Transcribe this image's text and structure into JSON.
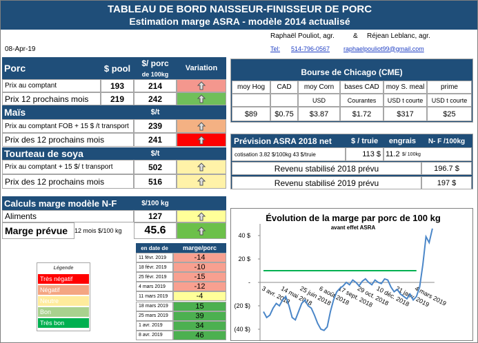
{
  "header": {
    "title": "TABLEAU DE BORD NAISSEUR-FINISSEUR DE PORC",
    "subtitle": "Estimation marge ASRA - modèle 2014 actualisé",
    "date": "08-Apr-19",
    "author1": "Raphaël Pouliot, agr.",
    "and": "&",
    "author2": "Réjean Leblanc, agr.",
    "tel_label": "Tel:",
    "tel": "514-796-0567",
    "email": "raphaelpouliot99@gmail.com"
  },
  "porc": {
    "title": "Porc",
    "col_pool": "$ pool",
    "col_porc": "$/ porc",
    "col_porc_unit": "de 100kg",
    "col_variation": "Variation",
    "rows": [
      {
        "label": "Prix au comptant",
        "pool": 193,
        "porc": 214,
        "color": "#f4978e"
      },
      {
        "label": "Prix 12 prochains mois",
        "pool": 219,
        "porc": 242,
        "color": "#70bf5a"
      }
    ]
  },
  "mais": {
    "title": "Maïs",
    "unit": "$/t",
    "rows": [
      {
        "label": "Prix au comptant  FOB + 15 $ /t transport",
        "value": 239,
        "color": "#f4b183"
      },
      {
        "label": "Prix des 12 prochains mois",
        "value": 241,
        "color": "#ff0000"
      }
    ]
  },
  "soya": {
    "title": "Tourteau de soya",
    "unit": "$/t",
    "rows": [
      {
        "label": "Prix au comptant  + 15 $/ t  transport",
        "value": 502,
        "color": "#fff2a8"
      },
      {
        "label": "Prix des 12 prochains mois",
        "value": 516,
        "color": "#fff2a8"
      }
    ]
  },
  "calculs": {
    "title": "Calculs marge  modèle N-F",
    "unit": "$/100 kg",
    "aliments_label": "Aliments",
    "aliments": 127,
    "aliments_color": "#ffff99",
    "marge_label": "Marge prévue",
    "marge_unit": "12 mois  $/100 kg",
    "marge": 45.6,
    "marge_color": "#6cc04a"
  },
  "margin_table": {
    "col_date": "en date de",
    "col_marge": "marge/porc",
    "rows": [
      {
        "date": "11 févr. 2019",
        "value": -14,
        "color": "#f8a090"
      },
      {
        "date": "18 févr. 2019",
        "value": -10,
        "color": "#f8a090"
      },
      {
        "date": "25 févr. 2019",
        "value": -15,
        "color": "#f8a090"
      },
      {
        "date": "4 mars 2019",
        "value": -12,
        "color": "#f8a090"
      },
      {
        "date": "11 mars 2019",
        "value": -4,
        "color": "#ffff99"
      },
      {
        "date": "18 mars 2019",
        "value": 15,
        "color": "#4cb050"
      },
      {
        "date": "25 mars 2019",
        "value": 39,
        "color": "#4cb050"
      },
      {
        "date": "1 avr. 2019",
        "value": 34,
        "color": "#4cb050"
      },
      {
        "date": "8 avr. 2019",
        "value": 46,
        "color": "#4cb050"
      }
    ]
  },
  "legend": {
    "title": "Légende",
    "items": [
      {
        "label": "Très négatif",
        "color": "#ff0000"
      },
      {
        "label": "Négatif",
        "color": "#f4a582"
      },
      {
        "label": "Neutre",
        "color": "#ffeb9c"
      },
      {
        "label": "Bon",
        "color": "#a9d18e"
      },
      {
        "label": "Très bon",
        "color": "#00b050"
      }
    ]
  },
  "bourse": {
    "title": "Bourse de Chicago (CME)",
    "columns": [
      {
        "head": "moy Hog",
        "unit": null,
        "value": "$89"
      },
      {
        "head": "CAD",
        "unit": null,
        "value": "$0.75"
      },
      {
        "head": "moy Corn",
        "unit": "USD",
        "value": "$3.87"
      },
      {
        "head": "bases CAD",
        "unit": "Courantes",
        "value": "$1.72"
      },
      {
        "head": "moy S. meal",
        "unit": "USD t courte",
        "value": "$317"
      },
      {
        "head": "prime",
        "unit": "USD t courte",
        "value": "$25"
      }
    ]
  },
  "prevision": {
    "title": "Prévision ASRA 2018 net",
    "col_truie": "$ / truie",
    "col_engrais": "engrais",
    "col_nf": "N- F /100kg",
    "cotisation": "cotisation 3.82 $/100kg  43 $/truie",
    "truie": "113  $",
    "engrais": "11.2",
    "engrais_unit": "$/ 100kg",
    "rev2018_label": "Revenu stabilisé 2018 prévu",
    "rev2018": "196.7 $",
    "rev2019_label": "Revenu stabilisé 2019 prévu",
    "rev2019": "197 $"
  },
  "chart_data": {
    "type": "line",
    "title": "Évolution de la marge par porc de 100 kg",
    "subtitle": "avant effet ASRA",
    "categories": [
      "3 avr. 2018",
      null,
      null,
      null,
      null,
      null,
      "14 mai 2018",
      null,
      null,
      null,
      null,
      null,
      "25 juin 2018",
      null,
      null,
      null,
      null,
      null,
      "6 août 2018",
      null,
      null,
      null,
      null,
      null,
      "17 sept. 2018",
      null,
      null,
      null,
      null,
      null,
      "29 oct. 2018",
      null,
      null,
      null,
      null,
      null,
      "10 déc. 2018",
      null,
      null,
      null,
      null,
      null,
      "21 janv. 2019",
      null,
      null,
      null,
      null,
      null,
      "4 mars 2019",
      null,
      null,
      null,
      null,
      null
    ],
    "series": [
      {
        "color": "#4a86c8",
        "values": [
          -25,
          -30,
          -28,
          -22,
          -18,
          -20,
          -15,
          -12,
          -20,
          -30,
          -32,
          -25,
          -18,
          -15,
          -20,
          -22,
          -28,
          -35,
          -40,
          -41,
          -38,
          -25,
          -15,
          -8,
          -5,
          -3,
          0,
          -2,
          2,
          0,
          -3,
          1,
          3,
          0,
          -2,
          2,
          0,
          -1,
          3,
          2,
          -4,
          -8,
          -6,
          -10,
          -12,
          -14,
          -10,
          -15,
          -12,
          -4,
          15,
          39,
          34,
          46
        ]
      }
    ],
    "reference_value": 10,
    "reference_color": "#00b050",
    "ylim": [
      -50,
      50
    ],
    "yticks": [
      {
        "value": 40,
        "label": "40 $"
      },
      {
        "value": 20,
        "label": "20 $"
      },
      {
        "value": 0,
        "label": "-"
      },
      {
        "value": -20,
        "label": "(20 $)"
      },
      {
        "value": -40,
        "label": "(40 $)"
      }
    ]
  }
}
